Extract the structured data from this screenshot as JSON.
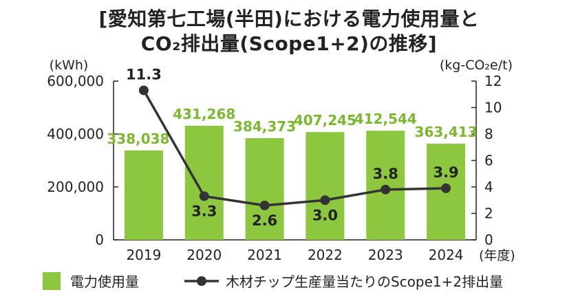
{
  "chart_data": {
    "type": "bar+line",
    "title_line1": "[愛知第七工場(半田)における電力使用量と",
    "title_line2": "CO₂排出量(Scope1+2)の推移]",
    "left_unit": "(kWh)",
    "right_unit": "(kg-CO₂e/t)",
    "x_unit": "(年度)",
    "categories": [
      "2019",
      "2020",
      "2021",
      "2022",
      "2023",
      "2024"
    ],
    "left_ticks": [
      "0",
      "200,000",
      "400,000",
      "600,000"
    ],
    "left_tick_values": [
      0,
      200000,
      400000,
      600000
    ],
    "right_ticks": [
      "0",
      "2",
      "4",
      "6",
      "8",
      "10",
      "12"
    ],
    "right_tick_values": [
      0,
      2,
      4,
      6,
      8,
      10,
      12
    ],
    "ylim_left": [
      0,
      600000
    ],
    "ylim_right": [
      0,
      12
    ],
    "series": [
      {
        "name": "電力使用量",
        "type": "bar",
        "axis": "left",
        "values": [
          338038,
          431268,
          384373,
          407245,
          412544,
          363413
        ],
        "labels": [
          "338,038",
          "431,268",
          "384,373",
          "407,245",
          "412,544",
          "363,413"
        ]
      },
      {
        "name": "木材チップ生産量当たりのScope1+2排出量",
        "type": "line",
        "axis": "right",
        "values": [
          11.3,
          3.3,
          2.6,
          3.0,
          3.8,
          3.9
        ],
        "labels": [
          "11.3",
          "3.3",
          "2.6",
          "3.0",
          "3.8",
          "3.9"
        ]
      }
    ],
    "colors": {
      "bar": "#8dc63f",
      "bar_label": "#7cb82f",
      "line": "#333333",
      "axis": "#222222"
    }
  }
}
